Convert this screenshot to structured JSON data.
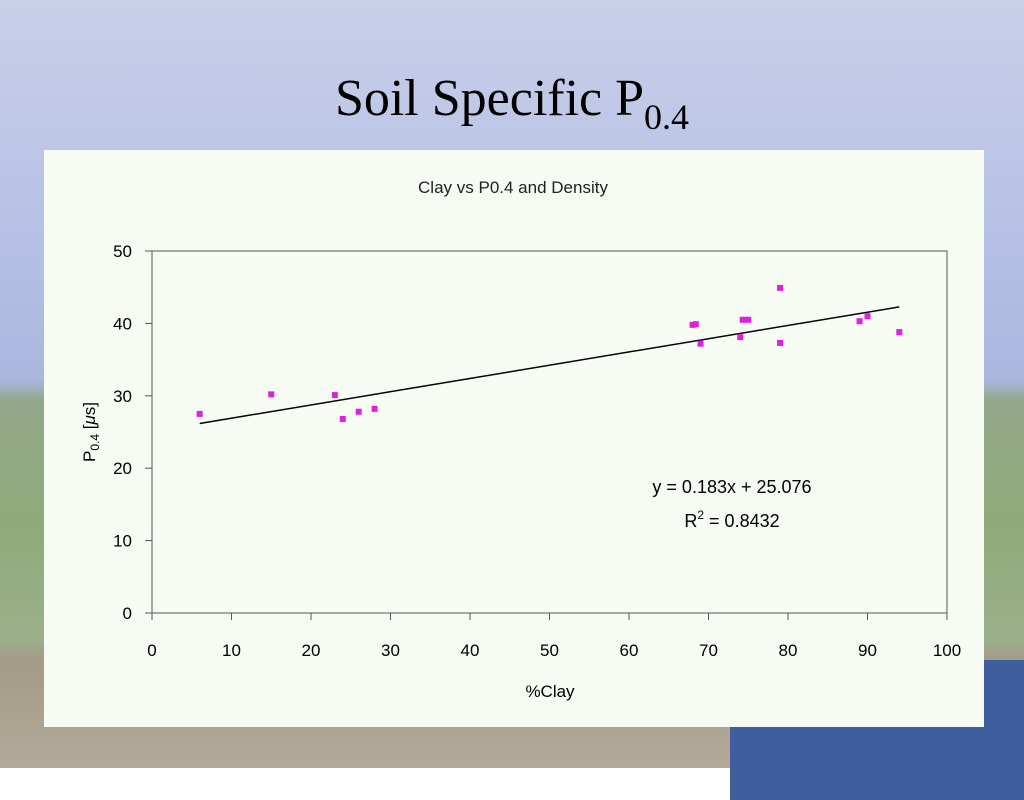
{
  "slide_title": {
    "text": "Soil Specific P",
    "sub": "0.4"
  },
  "chart_data": {
    "type": "scatter",
    "title": "Clay vs P0.4 and Density",
    "xlabel": "%Clay",
    "ylabel": {
      "text": "P",
      "sub": "0.4",
      "open": " [",
      "mu": "μ",
      "close": "s]"
    },
    "x": [
      6,
      15,
      23,
      24,
      26,
      28,
      68,
      68.4,
      69,
      74,
      74.3,
      75,
      79,
      79,
      89,
      90,
      94
    ],
    "series": [
      {
        "color": "#e020e0",
        "values": [
          27.5,
          30.2,
          30.1,
          26.8,
          27.8,
          28.2,
          39.8,
          39.9,
          37.2,
          38.1,
          40.5,
          40.5,
          44.9,
          37.3,
          40.3,
          41.0,
          38.8
        ]
      }
    ],
    "trendline": {
      "slope": 0.183,
      "intercept": 25.076,
      "color": "#000000",
      "equation": "y = 0.183x + 25.076",
      "r2": {
        "text": "R",
        "sup": "2",
        "rest": " = 0.8432"
      }
    },
    "xlim": [
      0,
      100
    ],
    "xticks": [
      0,
      10,
      20,
      30,
      40,
      50,
      60,
      70,
      80,
      90,
      100
    ],
    "ylim": [
      0,
      50
    ],
    "yticks": [
      0,
      10,
      20,
      30,
      40,
      50
    ]
  }
}
